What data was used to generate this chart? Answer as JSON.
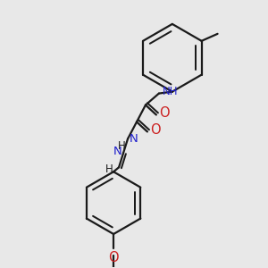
{
  "bg_color": "#e8e8e8",
  "bond_color": "#1a1a1a",
  "N_color": "#2020cc",
  "O_color": "#cc2020",
  "H_color": "#1a1a1a",
  "lw": 1.6,
  "fs": 8.5,
  "dpi": 100,
  "fig_w": 3.0,
  "fig_h": 3.0,
  "xlim": [
    0,
    300
  ],
  "ylim": [
    0,
    300
  ]
}
